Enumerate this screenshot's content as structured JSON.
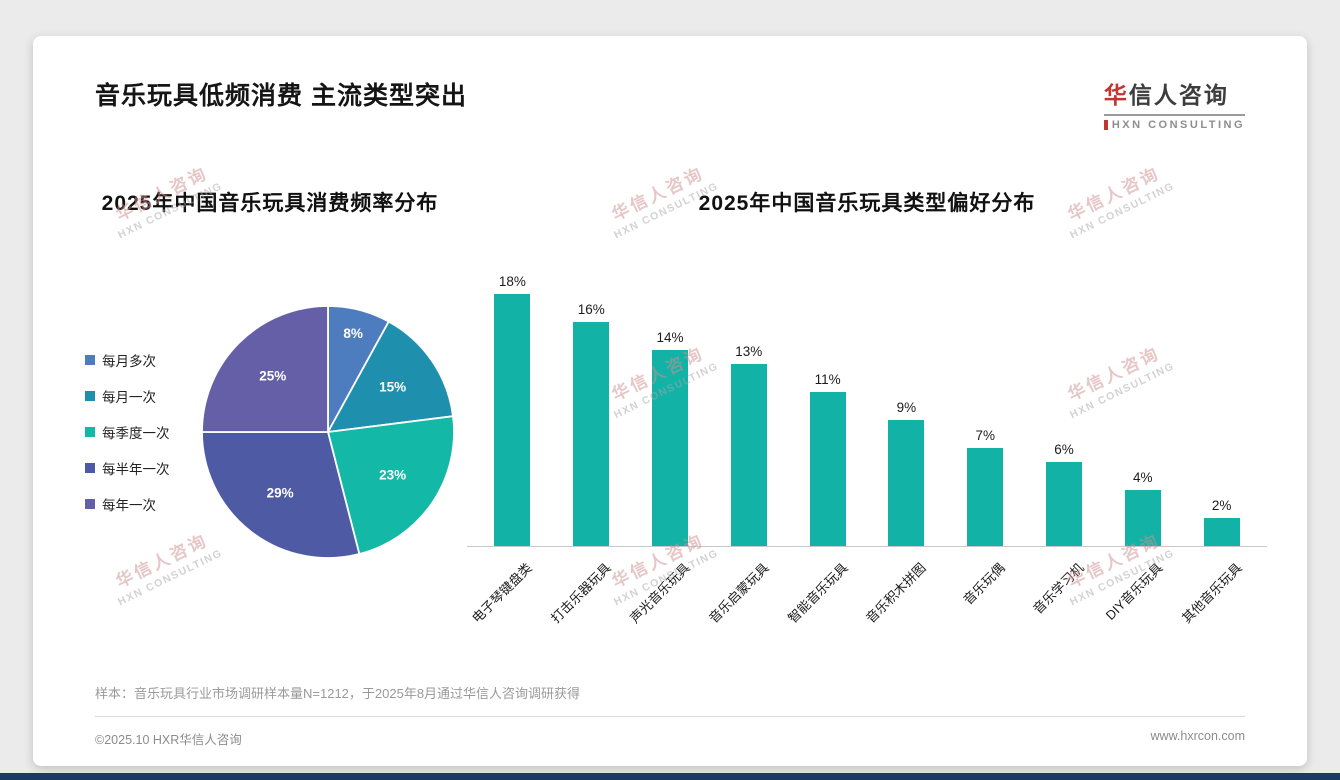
{
  "page": {
    "title": "音乐玩具低频消费 主流类型突出",
    "note": "样本：音乐玩具行业市场调研样本量N=1212，于2025年8月通过华信人咨询调研获得",
    "footer_left": "©2025.10 HXR华信人咨询",
    "footer_right": "www.hxrcon.com",
    "accent_navy": "#1d3a60",
    "accent_red": "#c23531"
  },
  "logo": {
    "cn_first": "华",
    "cn_rest": "信人咨询",
    "en": "HXN CONSULTING"
  },
  "watermark": {
    "line1": "华信人咨询",
    "line2": "HXN CONSULTING"
  },
  "chart_data": [
    {
      "type": "pie",
      "title": "2025年中国音乐玩具消费频率分布",
      "labels": [
        "每月多次",
        "每月一次",
        "每季度一次",
        "每半年一次",
        "每年一次"
      ],
      "values": [
        8,
        15,
        23,
        29,
        25
      ],
      "value_suffix": "%",
      "colors": [
        "#4d7dbe",
        "#1f8fae",
        "#14b8a6",
        "#4f5aa5",
        "#655fa8"
      ],
      "legend_position": "left",
      "start_angle_deg": -90,
      "direction": "clockwise"
    },
    {
      "type": "bar",
      "title": "2025年中国音乐玩具类型偏好分布",
      "categories": [
        "电子琴键盘类",
        "打击乐器玩具",
        "声光音乐玩具",
        "音乐启蒙玩具",
        "智能音乐玩具",
        "音乐积木拼图",
        "音乐玩偶",
        "音乐学习机",
        "DIY音乐玩具",
        "其他音乐玩具"
      ],
      "values": [
        18,
        16,
        14,
        13,
        11,
        9,
        7,
        6,
        4,
        2
      ],
      "value_suffix": "%",
      "bar_color": "#12b3a6",
      "ylim": [
        0,
        20
      ],
      "grid": false,
      "value_labels": "above"
    }
  ]
}
